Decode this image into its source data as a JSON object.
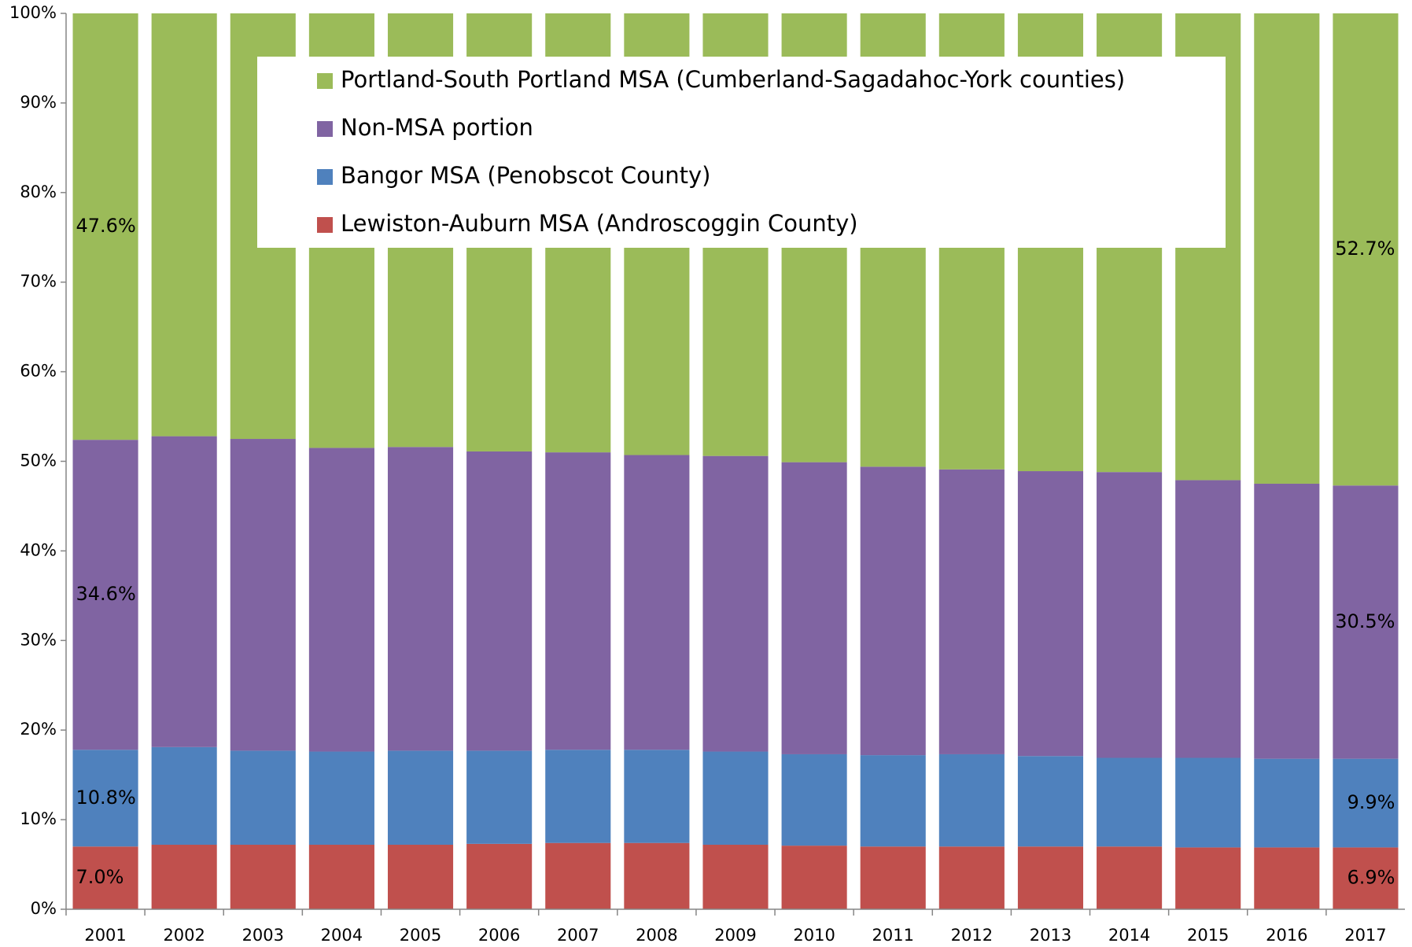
{
  "chart_data": {
    "type": "stacked-bar",
    "categories": [
      "2001",
      "2002",
      "2003",
      "2004",
      "2005",
      "2006",
      "2007",
      "2008",
      "2009",
      "2010",
      "2011",
      "2012",
      "2013",
      "2014",
      "2015",
      "2016",
      "2017"
    ],
    "series": [
      {
        "name": "Lewiston-Auburn MSA (Androscoggin County)",
        "color": "#c0504d",
        "values": [
          7.0,
          7.2,
          7.2,
          7.2,
          7.2,
          7.3,
          7.4,
          7.4,
          7.2,
          7.1,
          7.0,
          7.0,
          7.0,
          7.0,
          6.9,
          6.9,
          6.9
        ],
        "value_labels": [
          "7.0%",
          null,
          null,
          null,
          null,
          null,
          null,
          null,
          null,
          null,
          null,
          null,
          null,
          null,
          null,
          null,
          "6.9%"
        ]
      },
      {
        "name": "Bangor MSA (Penobscot County)",
        "color": "#4f81bd",
        "values": [
          10.8,
          10.9,
          10.5,
          10.4,
          10.5,
          10.4,
          10.4,
          10.4,
          10.4,
          10.2,
          10.2,
          10.3,
          10.1,
          9.9,
          10.0,
          9.9,
          9.9
        ],
        "value_labels": [
          "10.8%",
          null,
          null,
          null,
          null,
          null,
          null,
          null,
          null,
          null,
          null,
          null,
          null,
          null,
          null,
          null,
          "9.9%"
        ]
      },
      {
        "name": "Non-MSA portion",
        "color": "#8064a2",
        "values": [
          34.6,
          34.7,
          34.8,
          33.9,
          33.9,
          33.4,
          33.2,
          32.9,
          33.0,
          32.6,
          32.2,
          31.8,
          31.8,
          31.9,
          31.0,
          30.7,
          30.5
        ],
        "value_labels": [
          "34.6%",
          null,
          null,
          null,
          null,
          null,
          null,
          null,
          null,
          null,
          null,
          null,
          null,
          null,
          null,
          null,
          "30.5%"
        ]
      },
      {
        "name": "Portland-South Portland MSA (Cumberland-Sagadahoc-York counties)",
        "color": "#9bbb59",
        "values": [
          47.6,
          47.2,
          47.5,
          48.5,
          48.4,
          48.9,
          49.0,
          49.3,
          49.4,
          50.1,
          50.6,
          50.9,
          51.1,
          51.2,
          52.1,
          52.5,
          52.7
        ],
        "value_labels": [
          "47.6%",
          null,
          null,
          null,
          null,
          null,
          null,
          null,
          null,
          null,
          null,
          null,
          null,
          null,
          null,
          null,
          "52.7%"
        ]
      }
    ],
    "ylim": [
      0,
      100
    ],
    "yticks": [
      {
        "value": 0,
        "label": "0%"
      },
      {
        "value": 10,
        "label": "10%"
      },
      {
        "value": 20,
        "label": "20%"
      },
      {
        "value": 30,
        "label": "30%"
      },
      {
        "value": 40,
        "label": "40%"
      },
      {
        "value": 50,
        "label": "50%"
      },
      {
        "value": 60,
        "label": "60%"
      },
      {
        "value": 70,
        "label": "70%"
      },
      {
        "value": 80,
        "label": "80%"
      },
      {
        "value": 90,
        "label": "90%"
      },
      {
        "value": 100,
        "label": "100%"
      }
    ],
    "legend": "top"
  }
}
